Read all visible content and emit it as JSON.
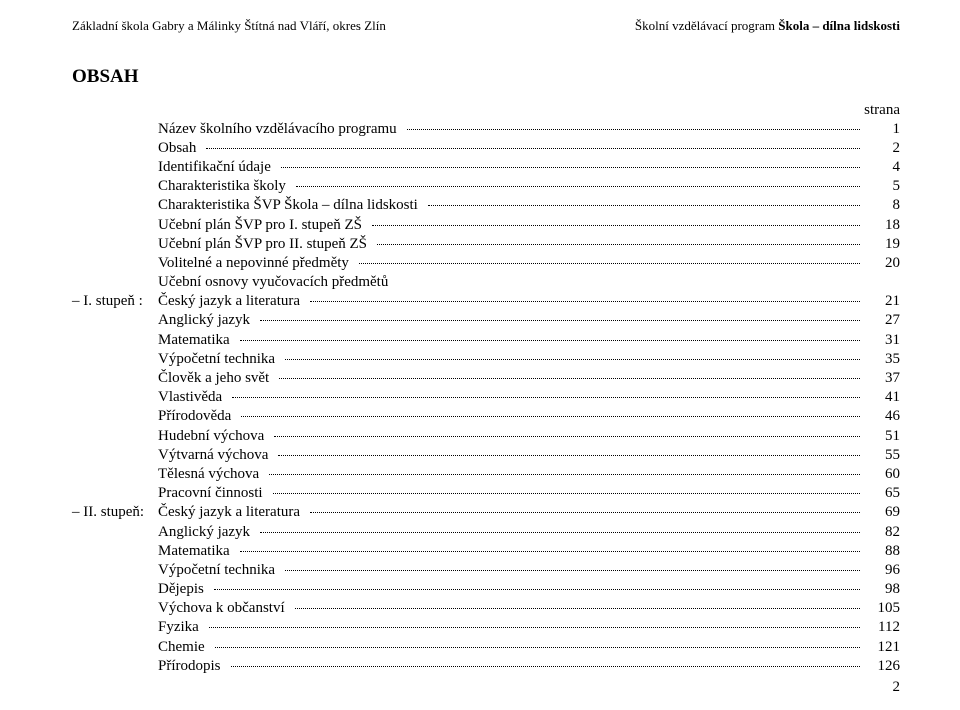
{
  "header": {
    "left": "Základní škola Gabry a Málinky Štítná nad Vláří, okres Zlín",
    "right_prefix": "Školní vzdělávací program ",
    "right_bold": "Škola – dílna lidskosti"
  },
  "title": "OBSAH",
  "strana_label": "strana",
  "page_footer": "2",
  "rows": [
    {
      "lead": "",
      "label": "Název školního vzdělávacího programu",
      "page": "1"
    },
    {
      "lead": "",
      "label": "Obsah",
      "page": "2"
    },
    {
      "lead": "",
      "label": "Identifikační údaje",
      "page": "4"
    },
    {
      "lead": "",
      "label": "Charakteristika školy",
      "page": "5"
    },
    {
      "lead": "",
      "label": "Charakteristika ŠVP Škola – dílna lidskosti",
      "page": "8"
    },
    {
      "lead": "",
      "label": "Učební plán ŠVP pro I. stupeň ZŠ",
      "page": "18"
    },
    {
      "lead": "",
      "label": "Učební plán ŠVP pro II. stupeň ZŠ",
      "page": "19"
    },
    {
      "lead": "",
      "label": "Volitelné a nepovinné předměty",
      "page": "20"
    },
    {
      "lead": "",
      "label": "Učební osnovy vyučovacích předmětů",
      "page": ""
    },
    {
      "lead": "– I. stupeň :",
      "label": "Český jazyk a literatura",
      "page": "21"
    },
    {
      "lead": "",
      "label": "Anglický jazyk",
      "page": "27"
    },
    {
      "lead": "",
      "label": "Matematika",
      "page": "31"
    },
    {
      "lead": "",
      "label": "Výpočetní technika",
      "page": "35"
    },
    {
      "lead": "",
      "label": "Člověk a jeho svět",
      "page": "37"
    },
    {
      "lead": "",
      "label": "Vlastivěda",
      "page": "41"
    },
    {
      "lead": "",
      "label": "Přírodověda",
      "page": "46"
    },
    {
      "lead": "",
      "label": "Hudební výchova",
      "page": "51"
    },
    {
      "lead": "",
      "label": "Výtvarná výchova",
      "page": "55"
    },
    {
      "lead": "",
      "label": "Tělesná výchova",
      "page": "60"
    },
    {
      "lead": "",
      "label": "Pracovní činnosti",
      "page": "65"
    },
    {
      "lead": "– II. stupeň:",
      "label": "Český jazyk a literatura",
      "page": "69"
    },
    {
      "lead": "",
      "label": "Anglický jazyk",
      "page": "82"
    },
    {
      "lead": "",
      "label": "Matematika",
      "page": "88"
    },
    {
      "lead": "",
      "label": "Výpočetní technika",
      "page": "96"
    },
    {
      "lead": "",
      "label": "Dějepis",
      "page": "98"
    },
    {
      "lead": "",
      "label": "Výchova k občanství",
      "page": "105"
    },
    {
      "lead": "",
      "label": "Fyzika",
      "page": "112"
    },
    {
      "lead": "",
      "label": "Chemie",
      "page": "121"
    },
    {
      "lead": "",
      "label": "Přírodopis",
      "page": "126"
    }
  ]
}
